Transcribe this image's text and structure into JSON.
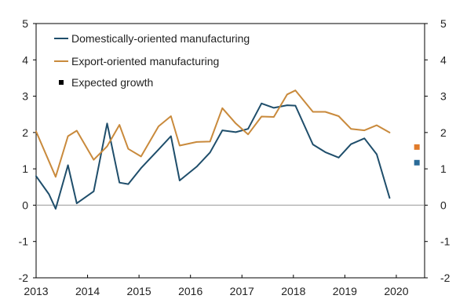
{
  "chart_data": {
    "type": "line",
    "title": "",
    "xlabel": "",
    "ylabel": "",
    "ylim": [
      -2,
      5
    ],
    "yticks": [
      -2,
      -1,
      0,
      1,
      2,
      3,
      4,
      5
    ],
    "xlim": [
      2013.0,
      2020.55
    ],
    "xticks": [
      "2013",
      "2014",
      "2015",
      "2016",
      "2017",
      "2018",
      "2019",
      "2020"
    ],
    "grid": false,
    "zero_line": true,
    "legend_position": "top-left",
    "legend": {
      "domestic": "Domestically-oriented manufacturing",
      "export": "Export-oriented manufacturing",
      "expected": "Expected growth"
    },
    "series": [
      {
        "name": "Domestically-oriented manufacturing",
        "color": "#1f4e6b",
        "x": [
          2013.0,
          2013.25,
          2013.38,
          2013.62,
          2013.79,
          2014.12,
          2014.38,
          2014.62,
          2014.79,
          2015.04,
          2015.38,
          2015.62,
          2015.79,
          2016.12,
          2016.38,
          2016.62,
          2016.88,
          2017.12,
          2017.38,
          2017.62,
          2017.88,
          2018.04,
          2018.38,
          2018.62,
          2018.88,
          2019.12,
          2019.38,
          2019.62,
          2019.87
        ],
        "y": [
          0.8,
          0.3,
          -0.1,
          1.1,
          0.05,
          0.38,
          2.25,
          0.62,
          0.58,
          1.02,
          1.53,
          1.9,
          0.68,
          1.06,
          1.45,
          2.06,
          2.01,
          2.1,
          2.8,
          2.68,
          2.75,
          2.74,
          1.67,
          1.46,
          1.31,
          1.68,
          1.84,
          1.4,
          0.2
        ]
      },
      {
        "name": "Export-oriented manufacturing",
        "color": "#c98a3c",
        "x": [
          2013.0,
          2013.38,
          2013.62,
          2013.79,
          2014.12,
          2014.38,
          2014.62,
          2014.79,
          2015.04,
          2015.38,
          2015.62,
          2015.79,
          2016.12,
          2016.38,
          2016.62,
          2016.88,
          2017.12,
          2017.38,
          2017.62,
          2017.88,
          2018.04,
          2018.38,
          2018.62,
          2018.88,
          2019.12,
          2019.38,
          2019.62,
          2019.87
        ],
        "y": [
          2.03,
          0.78,
          1.9,
          2.05,
          1.25,
          1.62,
          2.21,
          1.55,
          1.34,
          2.17,
          2.45,
          1.64,
          1.74,
          1.75,
          2.67,
          2.25,
          1.95,
          2.44,
          2.43,
          3.05,
          3.16,
          2.57,
          2.57,
          2.45,
          2.1,
          2.06,
          2.2,
          2.0
        ]
      }
    ],
    "expected_points": [
      {
        "series": "Export-oriented manufacturing",
        "x": 2020.4,
        "y": 1.6,
        "color": "#e07b2a"
      },
      {
        "series": "Domestically-oriented manufacturing",
        "x": 2020.4,
        "y": 1.17,
        "color": "#2a6b98"
      }
    ]
  }
}
